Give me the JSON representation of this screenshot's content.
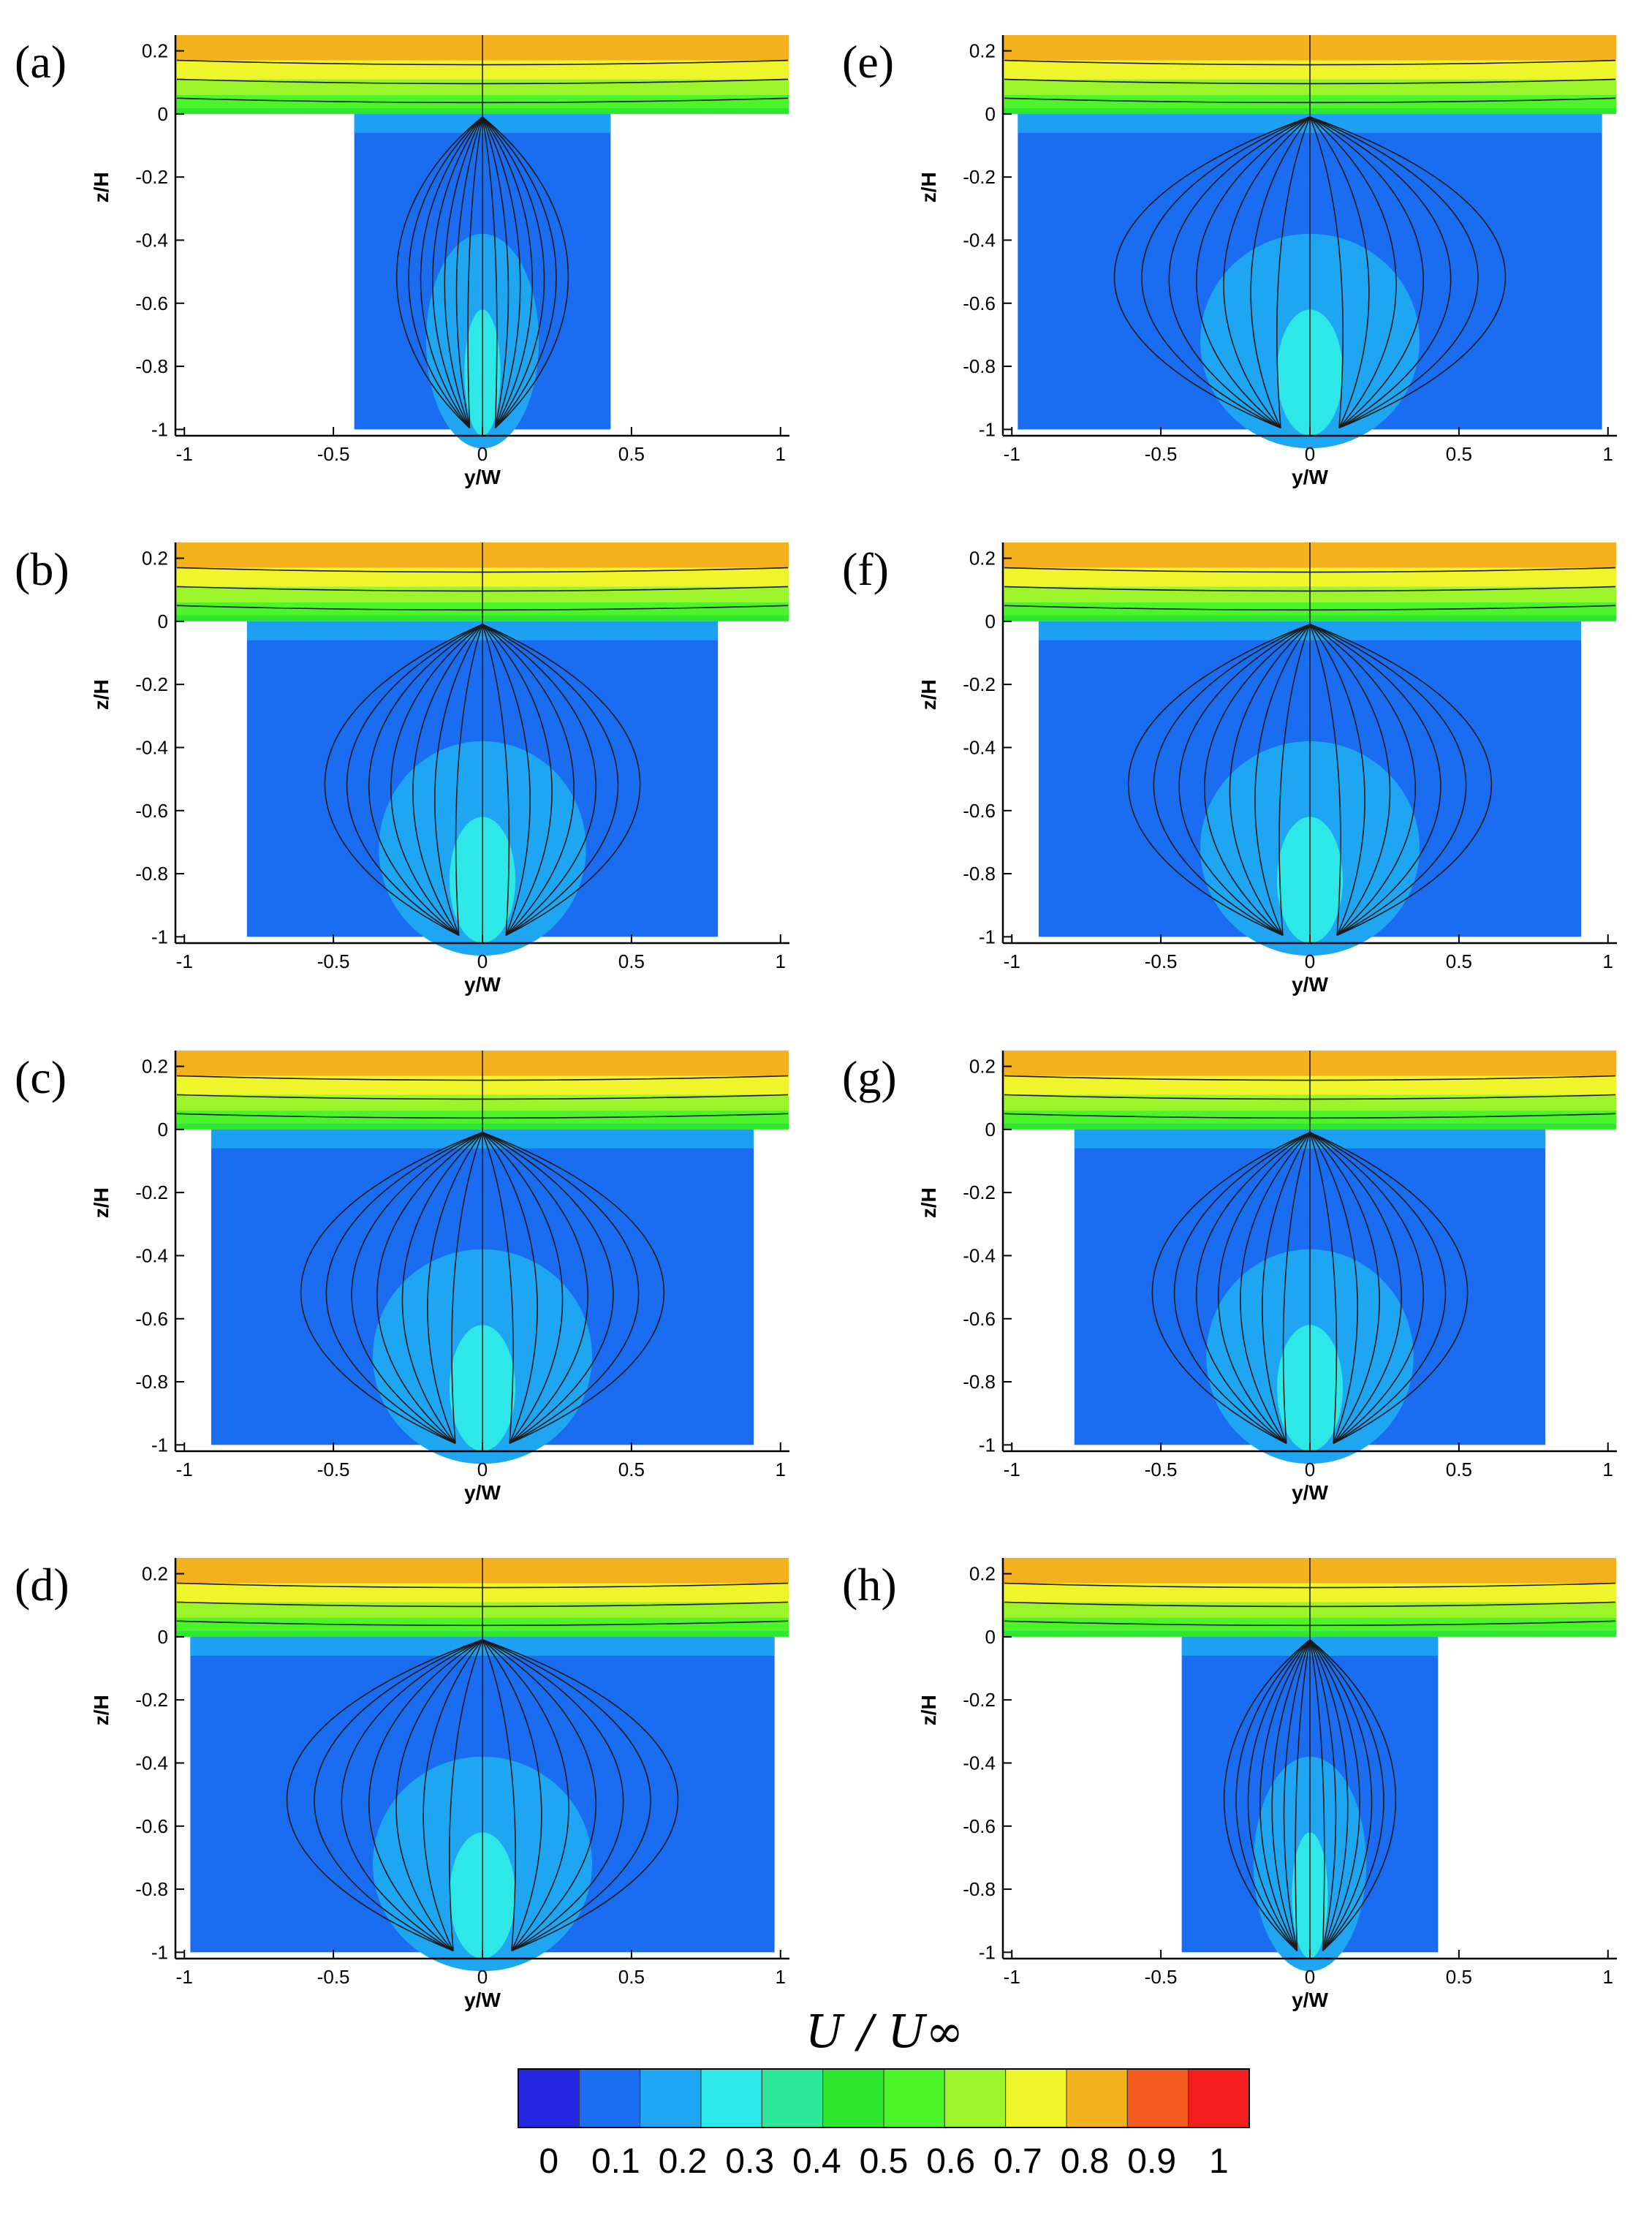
{
  "chart_data": {
    "type": "heatmap",
    "panels": [
      {
        "letter": "(a)",
        "cavity_half_width": 0.43
      },
      {
        "letter": "(b)",
        "cavity_half_width": 0.79
      },
      {
        "letter": "(c)",
        "cavity_half_width": 0.91
      },
      {
        "letter": "(d)",
        "cavity_half_width": 0.98
      },
      {
        "letter": "(e)",
        "cavity_half_width": 0.98
      },
      {
        "letter": "(f)",
        "cavity_half_width": 0.91
      },
      {
        "letter": "(g)",
        "cavity_half_width": 0.79
      },
      {
        "letter": "(h)",
        "cavity_half_width": 0.43
      }
    ],
    "xlabel": "y/W",
    "ylabel": "z/H",
    "xlim": [
      -1.03,
      1.03
    ],
    "ylim": [
      -1.02,
      0.25
    ],
    "x_ticks": [
      "-1",
      "-0.5",
      "0",
      "0.5",
      "1"
    ],
    "x_tick_values": [
      -1,
      -0.5,
      0,
      0.5,
      1
    ],
    "y_ticks": [
      "0.2",
      "0",
      "-0.2",
      "-0.4",
      "-0.6",
      "-0.8",
      "-1"
    ],
    "y_tick_values": [
      0.2,
      0,
      -0.2,
      -0.4,
      -0.6,
      -0.8,
      -1
    ],
    "colorbar": {
      "title": "U / U∞",
      "tick_labels": [
        "0",
        "0.1",
        "0.2",
        "0.3",
        "0.4",
        "0.5",
        "0.6",
        "0.7",
        "0.8",
        "0.9",
        "1"
      ],
      "colors": [
        "#2626e0",
        "#1a6cf0",
        "#1fa6f2",
        "#2ee8e8",
        "#2ee89a",
        "#2ee82e",
        "#4cf52a",
        "#9cf52a",
        "#eef52a",
        "#f5b01e",
        "#f55a1e",
        "#f51e1e"
      ]
    }
  }
}
